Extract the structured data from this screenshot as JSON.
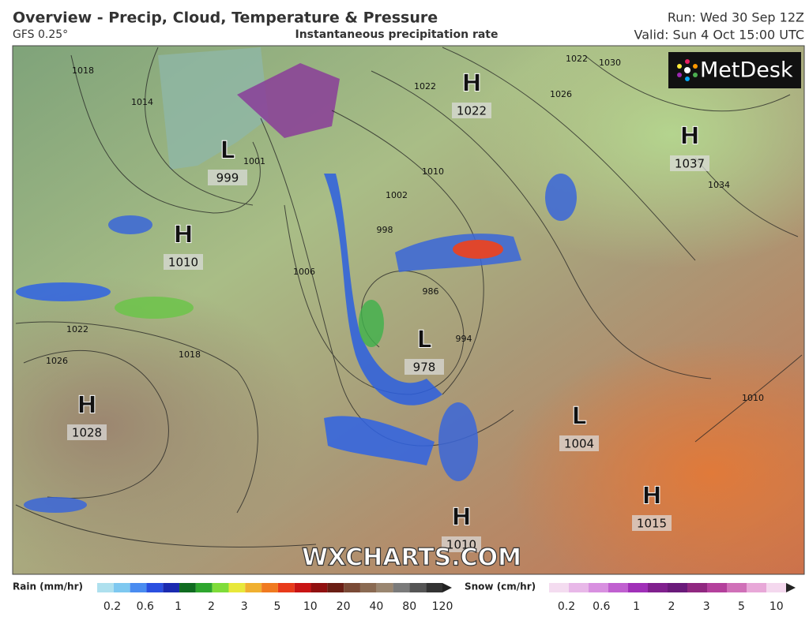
{
  "header": {
    "title": "Overview - Precip, Cloud, Temperature & Pressure",
    "model": "GFS 0.25°",
    "subtitle": "Instantaneous precipitation rate",
    "run": "Run: Wed 30 Sep 12Z",
    "valid": "Valid: Sun 4 Oct 15:00 UTC"
  },
  "logo": "MetDesk",
  "watermark": "WXCHARTS.COM",
  "pressure_centers": [
    {
      "type": "H",
      "value": 1022
    },
    {
      "type": "L",
      "value": 999
    },
    {
      "type": "H",
      "value": 1037
    },
    {
      "type": "H",
      "value": 1010
    },
    {
      "type": "L",
      "value": 978
    },
    {
      "type": "H",
      "value": 1028
    },
    {
      "type": "L",
      "value": 1004
    },
    {
      "type": "H",
      "value": 1015
    },
    {
      "type": "H",
      "value": 1010
    }
  ],
  "isobar_labels": [
    1018,
    1014,
    1022,
    1022,
    1030,
    1026,
    1010,
    1002,
    998,
    1006,
    986,
    994,
    1022,
    1026,
    1018,
    1010,
    1034,
    1001
  ],
  "legend": {
    "rain": {
      "title": "Rain (mm/hr)",
      "ticks": [
        0.2,
        0.6,
        1,
        2,
        3,
        5,
        10,
        20,
        40,
        80,
        120
      ]
    },
    "snow": {
      "title": "Snow (cm/hr)",
      "ticks": [
        0.2,
        0.6,
        1,
        2,
        3,
        5,
        10
      ]
    }
  }
}
